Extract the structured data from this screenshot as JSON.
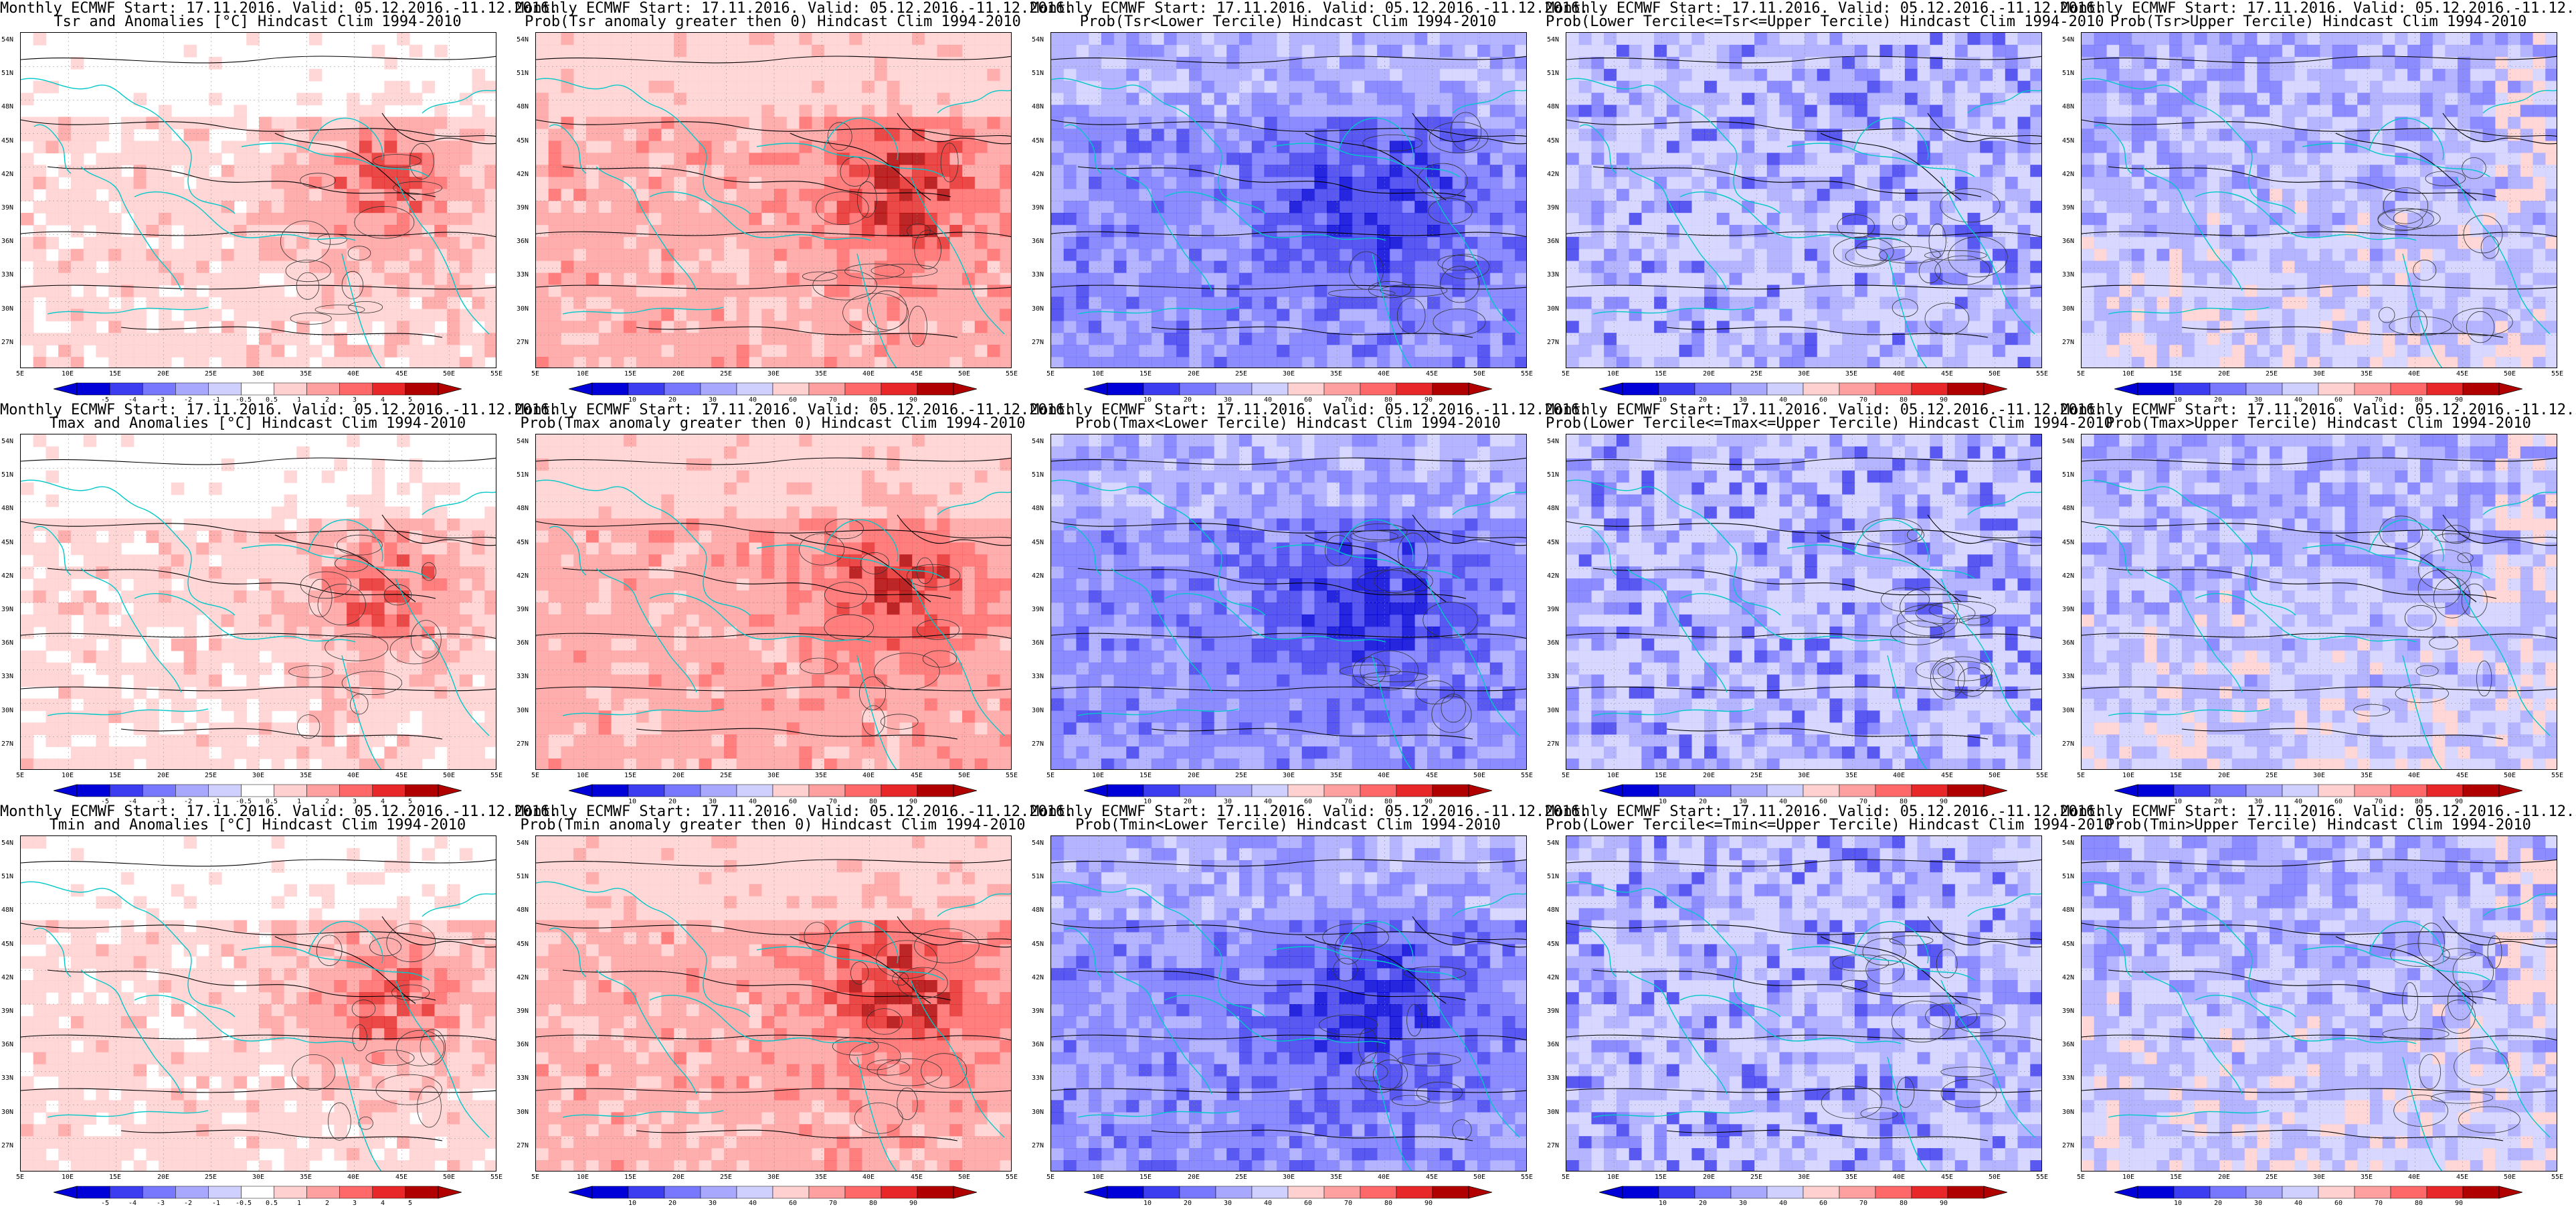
{
  "header": "Monthly ECMWF Start: 17.11.2016. Valid: 05.12.2016.-11.12.2016.",
  "colors": {
    "anomaly": [
      "#0000d8",
      "#3c3cf0",
      "#7878ff",
      "#a8a8ff",
      "#d0d0ff",
      "#ffffff",
      "#ffd0d0",
      "#ffa0a0",
      "#ff6868",
      "#e82828",
      "#b00000"
    ],
    "prob": [
      "#0000d8",
      "#3c3cf0",
      "#7878ff",
      "#a8a8ff",
      "#d0d0ff",
      "#ffd0d0",
      "#ffa0a0",
      "#ff6868",
      "#e82828",
      "#b00000"
    ],
    "coast": "#00c8c8",
    "contour": "#000000"
  },
  "anomaly_ticks": [
    "-5",
    "-4",
    "-3",
    "-2",
    "-1",
    "-0.5",
    "0.5",
    "1",
    "2",
    "3",
    "4",
    "5"
  ],
  "prob_ticks": [
    "10",
    "20",
    "30",
    "40",
    "60",
    "70",
    "80",
    "90"
  ],
  "lat_labels": [
    "54N",
    "51N",
    "48N",
    "45N",
    "42N",
    "39N",
    "36N",
    "33N",
    "30N",
    "27N"
  ],
  "lon_labels": [
    "5E",
    "10E",
    "15E",
    "20E",
    "25E",
    "30E",
    "35E",
    "40E",
    "45E",
    "50E",
    "55E"
  ],
  "panels": [
    {
      "id": "tsr-anom",
      "title": "Tsr and Anomalies [°C] Hindcast Clim 1994-2010",
      "scale": "anomaly",
      "palette": "warm",
      "label_prefix": "tsr"
    },
    {
      "id": "tsr-pos",
      "title": "Prob(Tsr anomaly greater then 0) Hindcast Clim 1994-2010",
      "scale": "prob",
      "palette": "warm",
      "label_prefix": "tsr"
    },
    {
      "id": "tsr-lower",
      "title": "Prob(Tsr<Lower Tercile) Hindcast Clim 1994-2010",
      "scale": "prob",
      "palette": "cold",
      "label_prefix": "tsr"
    },
    {
      "id": "tsr-middle",
      "title": "Prob(Lower Tercile<=Tsr<=Upper Tercile) Hindcast Clim 1994-2010",
      "scale": "prob",
      "palette": "mid",
      "label_prefix": "tsr"
    },
    {
      "id": "tsr-upper",
      "title": "Prob(Tsr>Upper Tercile) Hindcast Clim 1994-2010",
      "scale": "prob",
      "palette": "upper",
      "label_prefix": "tsr"
    },
    {
      "id": "tmax-anom",
      "title": "Tmax and Anomalies [°C] Hindcast Clim 1994-2010",
      "scale": "anomaly",
      "palette": "warm",
      "label_prefix": "tmax"
    },
    {
      "id": "tmax-pos",
      "title": "Prob(Tmax anomaly greater then 0) Hindcast Clim 1994-2010",
      "scale": "prob",
      "palette": "warm",
      "label_prefix": "tmax"
    },
    {
      "id": "tmax-lower",
      "title": "Prob(Tmax<Lower Tercile) Hindcast Clim 1994-2010",
      "scale": "prob",
      "palette": "cold",
      "label_prefix": "tmax"
    },
    {
      "id": "tmax-middle",
      "title": "Prob(Lower Tercile<=Tmax<=Upper Tercile) Hindcast Clim 1994-2010",
      "scale": "prob",
      "palette": "mid",
      "label_prefix": "tmax"
    },
    {
      "id": "tmax-upper",
      "title": "Prob(Tmax>Upper Tercile) Hindcast Clim 1994-2010",
      "scale": "prob",
      "palette": "upper",
      "label_prefix": "tmax"
    },
    {
      "id": "tmin-anom",
      "title": "Tmin and Anomalies [°C] Hindcast Clim 1994-2010",
      "scale": "anomaly",
      "palette": "warm",
      "label_prefix": "tmin"
    },
    {
      "id": "tmin-pos",
      "title": "Prob(Tmin anomaly greater then 0) Hindcast Clim 1994-2010",
      "scale": "prob",
      "palette": "warm",
      "label_prefix": "tmin"
    },
    {
      "id": "tmin-lower",
      "title": "Prob(Tmin<Lower Tercile) Hindcast Clim 1994-2010",
      "scale": "prob",
      "palette": "cold",
      "label_prefix": "tmin"
    },
    {
      "id": "tmin-middle",
      "title": "Prob(Lower Tercile<=Tmin<=Upper Tercile) Hindcast Clim 1994-2010",
      "scale": "prob",
      "palette": "mid",
      "label_prefix": "tmin"
    },
    {
      "id": "tmin-upper",
      "title": "Prob(Tmin>Upper Tercile) Hindcast Clim 1994-2010",
      "scale": "prob",
      "palette": "upper",
      "label_prefix": "tmin"
    }
  ]
}
